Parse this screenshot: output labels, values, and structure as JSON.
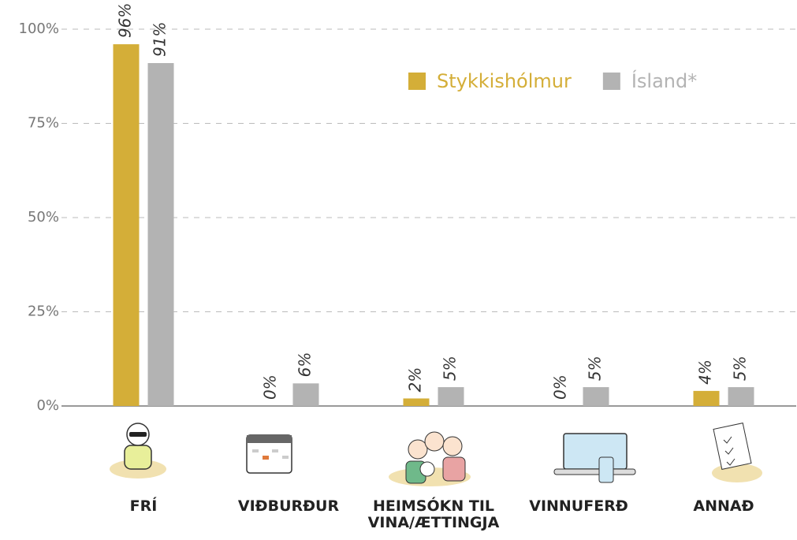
{
  "chart_data": {
    "type": "bar",
    "categories": [
      "FRÍ",
      "VIÐBURÐUR",
      "HEIMSÓKN TIL VINA/ÆTTINGJA",
      "VINNUFERÐ",
      "ANNAÐ"
    ],
    "series": [
      {
        "name": "Stykkishólmur",
        "color": "#d4ae38",
        "values": [
          96,
          0,
          2,
          0,
          4
        ],
        "value_labels": [
          "96%",
          "0%",
          "2%",
          "0%",
          "4%"
        ]
      },
      {
        "name": "Ísland*",
        "color": "#b3b3b3",
        "values": [
          91,
          6,
          5,
          5,
          5
        ],
        "value_labels": [
          "91%",
          "6%",
          "5%",
          "5%",
          "5%"
        ]
      }
    ],
    "ylim": [
      0,
      100
    ],
    "yticks": [
      {
        "value": 0,
        "label": "0%"
      },
      {
        "value": 25,
        "label": "25%"
      },
      {
        "value": 50,
        "label": "50%"
      },
      {
        "value": 75,
        "label": "75%"
      },
      {
        "value": 100,
        "label": "100%"
      }
    ],
    "grid": true,
    "legend": "top-right"
  }
}
